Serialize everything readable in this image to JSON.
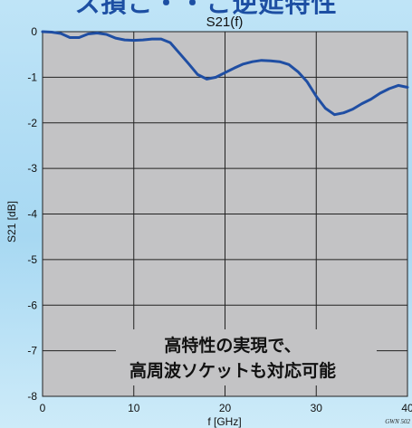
{
  "header": {
    "text": "ス損こ・・こ逆延特性"
  },
  "chart_data": {
    "type": "line",
    "title": "S21(f)",
    "xlabel": "f [GHz]",
    "ylabel": "S21 [dB]",
    "xlim": [
      0,
      40
    ],
    "ylim": [
      -8,
      0
    ],
    "xticks": [
      "0",
      "10",
      "20",
      "30",
      "40"
    ],
    "yticks": [
      "0",
      "-1",
      "-2",
      "-3",
      "-4",
      "-5",
      "-6",
      "-7",
      "-8"
    ],
    "grid": true,
    "series": [
      {
        "color": "#1f4ea3",
        "x": [
          0,
          1,
          2,
          3,
          4,
          5,
          6,
          7,
          8,
          9,
          10,
          11,
          12,
          13,
          14,
          15,
          16,
          17,
          18,
          19,
          20,
          21,
          22,
          23,
          24,
          25,
          26,
          27,
          28,
          29,
          30,
          31,
          32,
          33,
          34,
          35,
          36,
          37,
          38,
          39,
          40
        ],
        "y": [
          0,
          -0.01,
          -0.04,
          -0.13,
          -0.13,
          -0.05,
          -0.03,
          -0.06,
          -0.14,
          -0.18,
          -0.19,
          -0.18,
          -0.16,
          -0.16,
          -0.24,
          -0.47,
          -0.7,
          -0.94,
          -1.04,
          -1.0,
          -0.9,
          -0.8,
          -0.71,
          -0.66,
          -0.63,
          -0.64,
          -0.66,
          -0.72,
          -0.88,
          -1.1,
          -1.42,
          -1.68,
          -1.82,
          -1.78,
          -1.7,
          -1.58,
          -1.48,
          -1.35,
          -1.25,
          -1.18,
          -1.22
        ]
      }
    ],
    "annotations": [
      "高特性の実現で、",
      "高周波ソケットも対応可能"
    ],
    "code_label": "GWN 502"
  }
}
